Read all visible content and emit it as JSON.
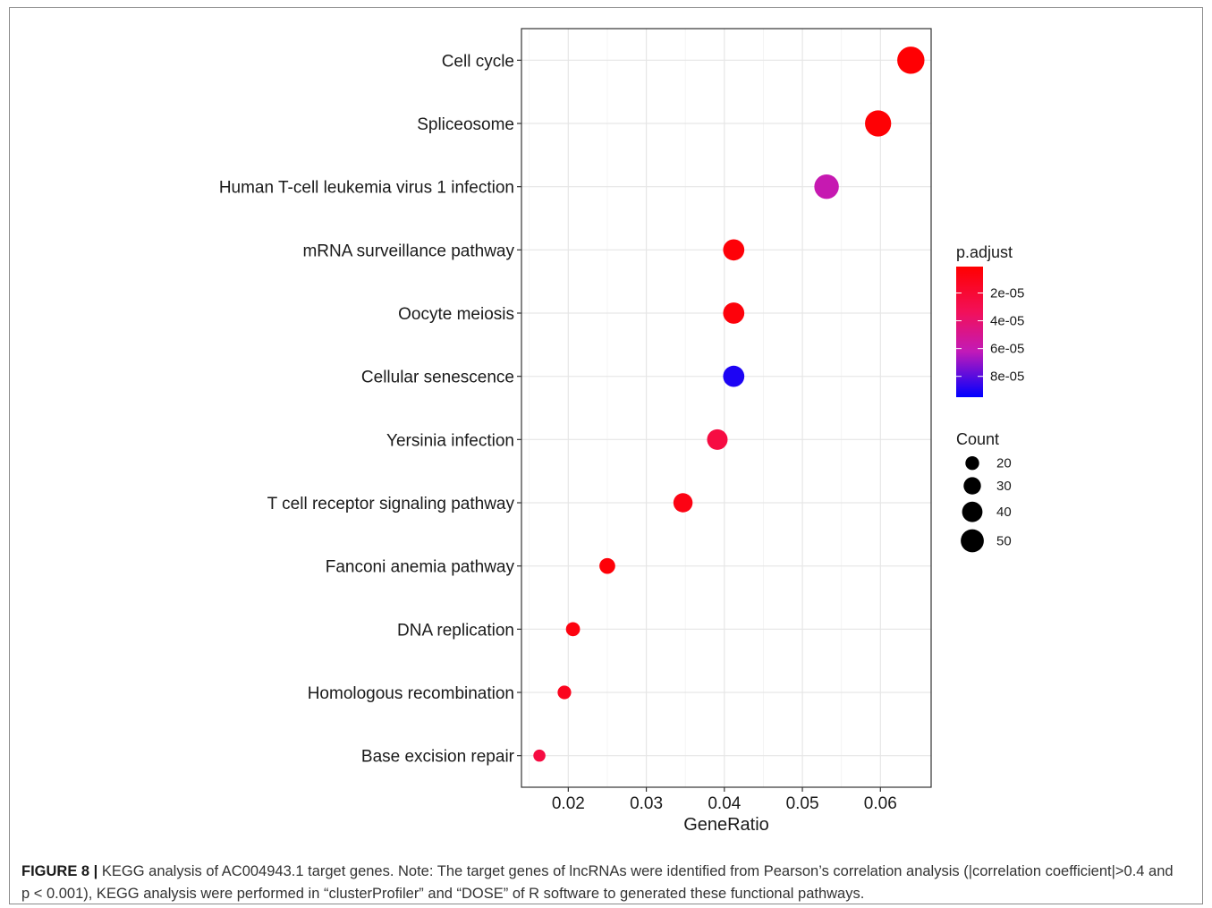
{
  "chart_data": {
    "type": "scatter",
    "title": "",
    "xlabel": "GeneRatio",
    "ylabel": "",
    "xlim": [
      0.014,
      0.0665
    ],
    "xticks": [
      0.02,
      0.03,
      0.04,
      0.05,
      0.06
    ],
    "xtick_labels": [
      "0.02",
      "0.03",
      "0.04",
      "0.05",
      "0.06"
    ],
    "grid": true,
    "categories": [
      "Cell cycle",
      "Spliceosome",
      "Human T-cell leukemia virus 1 infection",
      "mRNA surveillance pathway",
      "Oocyte meiosis",
      "Cellular senescence",
      "Yersinia infection",
      "T cell receptor signaling pathway",
      "Fanconi anemia pathway",
      "DNA replication",
      "Homologous recombination",
      "Base excision repair"
    ],
    "gene_ratio": [
      0.0639,
      0.0597,
      0.0531,
      0.0412,
      0.0412,
      0.0412,
      0.0391,
      0.0347,
      0.025,
      0.0206,
      0.0195,
      0.0163
    ],
    "count": [
      58,
      54,
      48,
      37,
      37,
      37,
      35,
      31,
      22,
      18,
      17,
      14
    ],
    "p_adjust": [
      2e-06,
      3e-06,
      6e-05,
      4e-06,
      5e-06,
      9e-05,
      2.5e-05,
      8e-06,
      4e-06,
      7e-06,
      1.2e-05,
      2.5e-05
    ],
    "color_legend": {
      "title": "p.adjust",
      "ticks": [
        2e-05,
        4e-05,
        6e-05,
        8e-05
      ],
      "tick_labels": [
        "2e-05",
        "4e-05",
        "6e-05",
        "8e-05"
      ],
      "range": [
        1e-06,
        9.5e-05
      ],
      "low_color": "#ff0000",
      "high_color": "#0000ff"
    },
    "size_legend": {
      "title": "Count",
      "values": [
        20,
        30,
        40,
        50
      ],
      "labels": [
        "20",
        "30",
        "40",
        "50"
      ]
    },
    "legend_position": "right"
  },
  "caption": {
    "label": "FIGURE 8 |",
    "text": "KEGG analysis of AC004943.1 target genes. Note: The target genes of lncRNAs were identified from Pearson’s correlation analysis (|correlation coefficient|>0.4 and p < 0.001), KEGG analysis were performed in “clusterProfiler” and “DOSE” of R software to generated these functional pathways."
  }
}
